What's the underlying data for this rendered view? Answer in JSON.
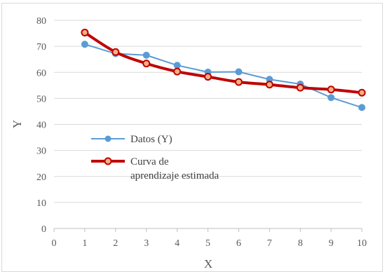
{
  "chart_data": {
    "type": "line",
    "xlabel": "X",
    "ylabel": "Y",
    "xlim": [
      0,
      10
    ],
    "ylim": [
      0,
      80
    ],
    "x_ticks": [
      0,
      1,
      2,
      3,
      4,
      5,
      6,
      7,
      8,
      9,
      10
    ],
    "y_ticks": [
      0,
      10,
      20,
      30,
      40,
      50,
      60,
      70,
      80
    ],
    "grid": "horizontal",
    "legend_position": "center-left",
    "series": [
      {
        "name": "Datos (Y)",
        "color": "#5b9bd5",
        "x": [
          1,
          2,
          3,
          4,
          5,
          6,
          7,
          8,
          9,
          10
        ],
        "values": [
          70.8,
          67.2,
          66.6,
          62.7,
          60.1,
          60.2,
          57.3,
          55.5,
          50.3,
          46.5
        ]
      },
      {
        "name": "Curva de aprendizaje estimada",
        "color": "#c00000",
        "x": [
          1,
          2,
          3,
          4,
          5,
          6,
          7,
          8,
          9,
          10
        ],
        "values": [
          75.3,
          67.8,
          63.4,
          60.3,
          58.3,
          56.3,
          55.3,
          54.1,
          53.4,
          52.2
        ]
      }
    ]
  },
  "legend": {
    "items": [
      {
        "lines": [
          "Datos (Y)"
        ]
      },
      {
        "lines": [
          "Curva de",
          "aprendizaje estimada"
        ]
      }
    ]
  }
}
